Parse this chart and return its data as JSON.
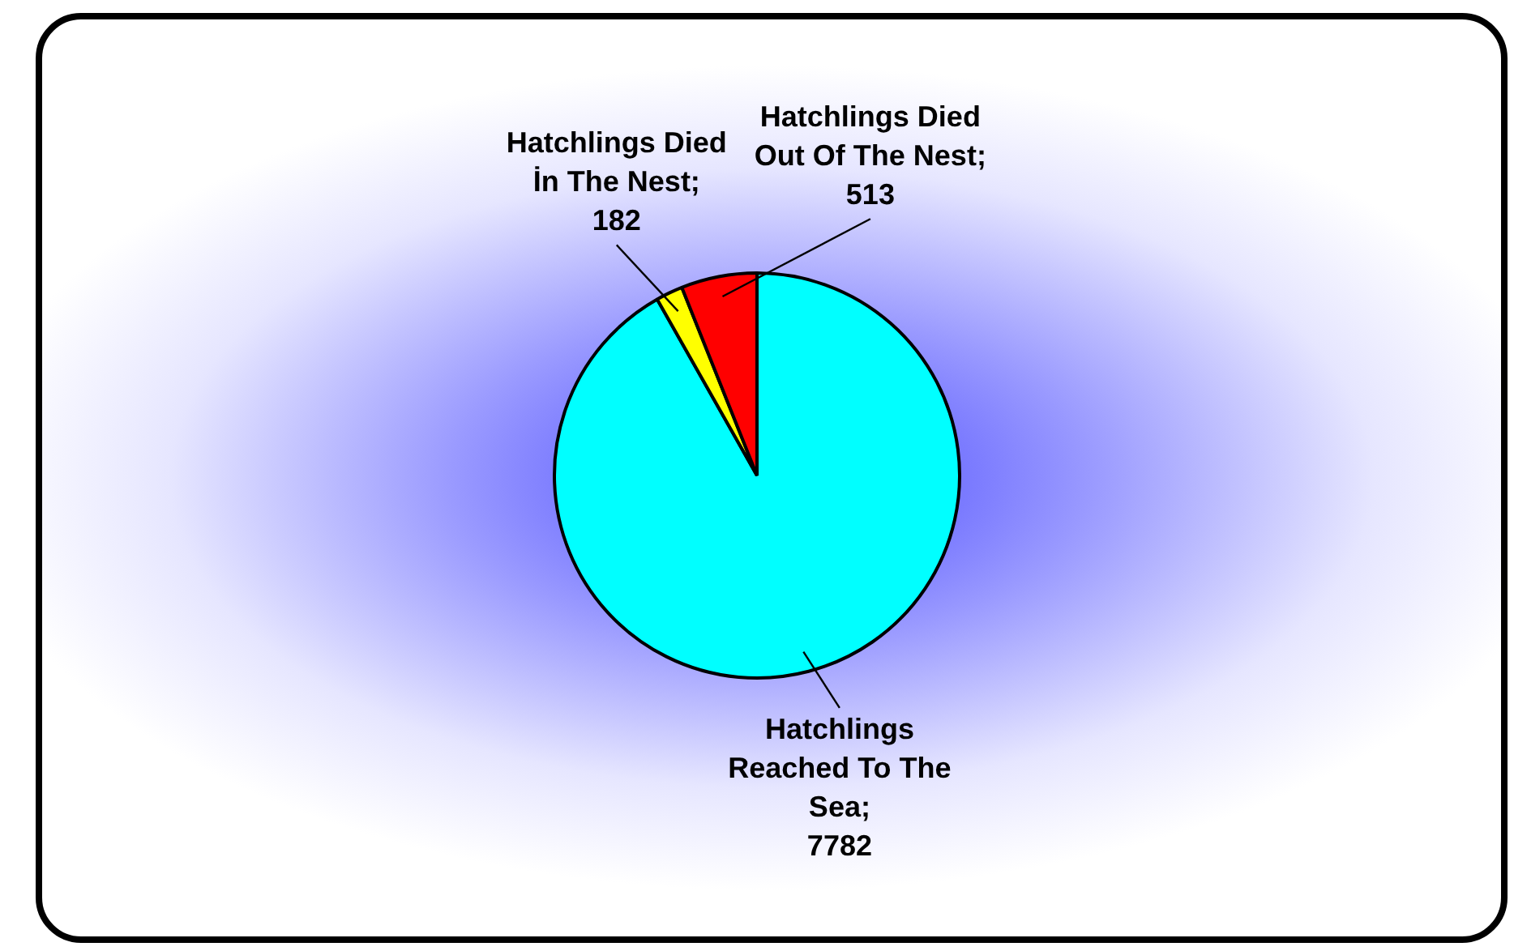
{
  "chart_data": {
    "type": "pie",
    "categories": [
      "Hatchlings Reached To The Sea",
      "Hatchlings Died İn The Nest",
      "Hatchlings Died Out Of The Nest"
    ],
    "values": [
      7782,
      182,
      513
    ],
    "colors": [
      "#00ffff",
      "#ffff00",
      "#ff0000"
    ],
    "annotations": [
      ";",
      ";",
      ";"
    ],
    "data_labels": true,
    "legend": false
  }
}
